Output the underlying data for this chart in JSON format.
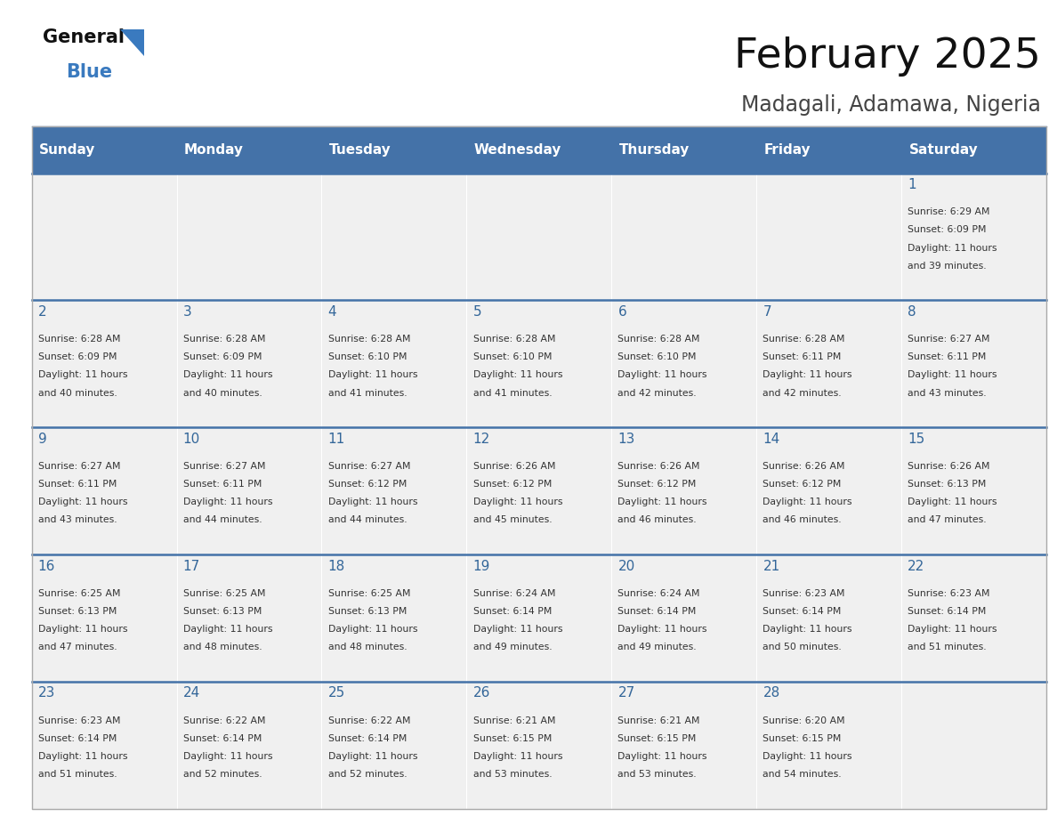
{
  "title": "February 2025",
  "subtitle": "Madagali, Adamawa, Nigeria",
  "days_of_week": [
    "Sunday",
    "Monday",
    "Tuesday",
    "Wednesday",
    "Thursday",
    "Friday",
    "Saturday"
  ],
  "header_bg": "#4472a8",
  "header_text": "#ffffff",
  "cell_bg_light": "#f0f0f0",
  "day_number_color": "#336699",
  "cell_text_color": "#333333",
  "divider_color": "#4472a8",
  "title_color": "#111111",
  "subtitle_color": "#444444",
  "logo_general_color": "#111111",
  "logo_blue_color": "#3a7abf",
  "calendar_data": [
    {
      "day": 1,
      "col": 6,
      "row": 0,
      "sunrise": "6:29 AM",
      "sunset": "6:09 PM",
      "daylight_min": "39"
    },
    {
      "day": 2,
      "col": 0,
      "row": 1,
      "sunrise": "6:28 AM",
      "sunset": "6:09 PM",
      "daylight_min": "40"
    },
    {
      "day": 3,
      "col": 1,
      "row": 1,
      "sunrise": "6:28 AM",
      "sunset": "6:09 PM",
      "daylight_min": "40"
    },
    {
      "day": 4,
      "col": 2,
      "row": 1,
      "sunrise": "6:28 AM",
      "sunset": "6:10 PM",
      "daylight_min": "41"
    },
    {
      "day": 5,
      "col": 3,
      "row": 1,
      "sunrise": "6:28 AM",
      "sunset": "6:10 PM",
      "daylight_min": "41"
    },
    {
      "day": 6,
      "col": 4,
      "row": 1,
      "sunrise": "6:28 AM",
      "sunset": "6:10 PM",
      "daylight_min": "42"
    },
    {
      "day": 7,
      "col": 5,
      "row": 1,
      "sunrise": "6:28 AM",
      "sunset": "6:11 PM",
      "daylight_min": "42"
    },
    {
      "day": 8,
      "col": 6,
      "row": 1,
      "sunrise": "6:27 AM",
      "sunset": "6:11 PM",
      "daylight_min": "43"
    },
    {
      "day": 9,
      "col": 0,
      "row": 2,
      "sunrise": "6:27 AM",
      "sunset": "6:11 PM",
      "daylight_min": "43"
    },
    {
      "day": 10,
      "col": 1,
      "row": 2,
      "sunrise": "6:27 AM",
      "sunset": "6:11 PM",
      "daylight_min": "44"
    },
    {
      "day": 11,
      "col": 2,
      "row": 2,
      "sunrise": "6:27 AM",
      "sunset": "6:12 PM",
      "daylight_min": "44"
    },
    {
      "day": 12,
      "col": 3,
      "row": 2,
      "sunrise": "6:26 AM",
      "sunset": "6:12 PM",
      "daylight_min": "45"
    },
    {
      "day": 13,
      "col": 4,
      "row": 2,
      "sunrise": "6:26 AM",
      "sunset": "6:12 PM",
      "daylight_min": "46"
    },
    {
      "day": 14,
      "col": 5,
      "row": 2,
      "sunrise": "6:26 AM",
      "sunset": "6:12 PM",
      "daylight_min": "46"
    },
    {
      "day": 15,
      "col": 6,
      "row": 2,
      "sunrise": "6:26 AM",
      "sunset": "6:13 PM",
      "daylight_min": "47"
    },
    {
      "day": 16,
      "col": 0,
      "row": 3,
      "sunrise": "6:25 AM",
      "sunset": "6:13 PM",
      "daylight_min": "47"
    },
    {
      "day": 17,
      "col": 1,
      "row": 3,
      "sunrise": "6:25 AM",
      "sunset": "6:13 PM",
      "daylight_min": "48"
    },
    {
      "day": 18,
      "col": 2,
      "row": 3,
      "sunrise": "6:25 AM",
      "sunset": "6:13 PM",
      "daylight_min": "48"
    },
    {
      "day": 19,
      "col": 3,
      "row": 3,
      "sunrise": "6:24 AM",
      "sunset": "6:14 PM",
      "daylight_min": "49"
    },
    {
      "day": 20,
      "col": 4,
      "row": 3,
      "sunrise": "6:24 AM",
      "sunset": "6:14 PM",
      "daylight_min": "49"
    },
    {
      "day": 21,
      "col": 5,
      "row": 3,
      "sunrise": "6:23 AM",
      "sunset": "6:14 PM",
      "daylight_min": "50"
    },
    {
      "day": 22,
      "col": 6,
      "row": 3,
      "sunrise": "6:23 AM",
      "sunset": "6:14 PM",
      "daylight_min": "51"
    },
    {
      "day": 23,
      "col": 0,
      "row": 4,
      "sunrise": "6:23 AM",
      "sunset": "6:14 PM",
      "daylight_min": "51"
    },
    {
      "day": 24,
      "col": 1,
      "row": 4,
      "sunrise": "6:22 AM",
      "sunset": "6:14 PM",
      "daylight_min": "52"
    },
    {
      "day": 25,
      "col": 2,
      "row": 4,
      "sunrise": "6:22 AM",
      "sunset": "6:14 PM",
      "daylight_min": "52"
    },
    {
      "day": 26,
      "col": 3,
      "row": 4,
      "sunrise": "6:21 AM",
      "sunset": "6:15 PM",
      "daylight_min": "53"
    },
    {
      "day": 27,
      "col": 4,
      "row": 4,
      "sunrise": "6:21 AM",
      "sunset": "6:15 PM",
      "daylight_min": "53"
    },
    {
      "day": 28,
      "col": 5,
      "row": 4,
      "sunrise": "6:20 AM",
      "sunset": "6:15 PM",
      "daylight_min": "54"
    }
  ],
  "num_rows": 5,
  "num_cols": 7
}
